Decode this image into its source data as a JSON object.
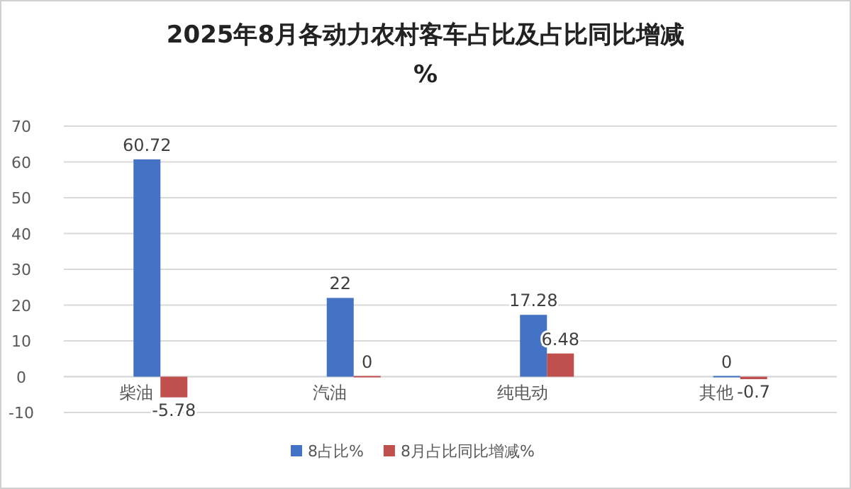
{
  "chart_data": {
    "type": "bar",
    "title": "2025年8月各动力农村客车占比及占比同比增减",
    "subtitle": "%",
    "categories": [
      "柴油",
      "汽油",
      "纯电动",
      "其他"
    ],
    "series": [
      {
        "name": "8占比%",
        "color": "#4472c4",
        "values": [
          60.72,
          22,
          17.28,
          0
        ]
      },
      {
        "name": "8月占比同比增减%",
        "color": "#c0504d",
        "values": [
          -5.78,
          0,
          6.48,
          -0.7
        ]
      }
    ],
    "ylim": [
      -10,
      70
    ],
    "yticks": [
      -10,
      0,
      10,
      20,
      30,
      40,
      50,
      60,
      70
    ],
    "grid": "y",
    "legend": "bottom",
    "data_labels": true
  }
}
